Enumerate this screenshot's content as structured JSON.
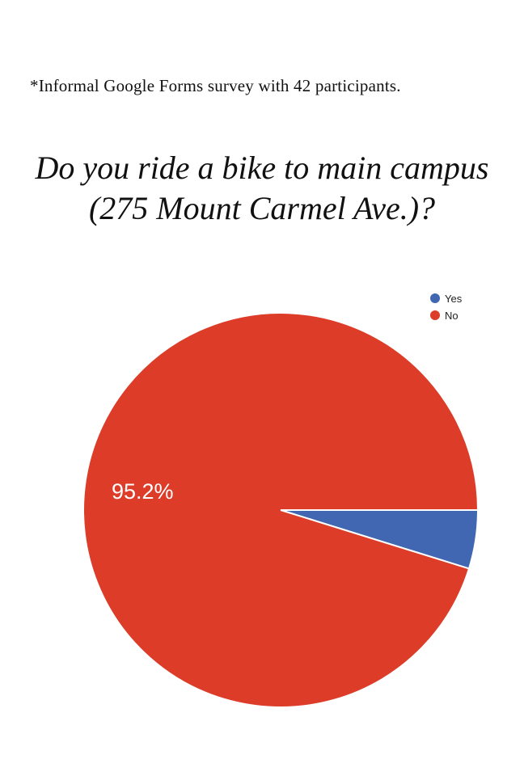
{
  "footnote": "*Informal Google Forms survey with 42 participants.",
  "title_line1": "Do you ride a bike to main campus",
  "title_line2": "(275 Mount Carmel Ave.)?",
  "chart_data": {
    "type": "pie",
    "title": "Do you ride a bike to main campus (275 Mount Carmel Ave.)?",
    "slices": [
      {
        "label": "Yes",
        "value": 4.8,
        "color": "#4166b2"
      },
      {
        "label": "No",
        "value": 95.2,
        "color": "#dc3c28"
      }
    ],
    "data_labels": [
      {
        "slice": "No",
        "text": "95.2%"
      }
    ],
    "legend_position": "top-right",
    "start_angle_deg": 0,
    "direction": "clockwise"
  }
}
